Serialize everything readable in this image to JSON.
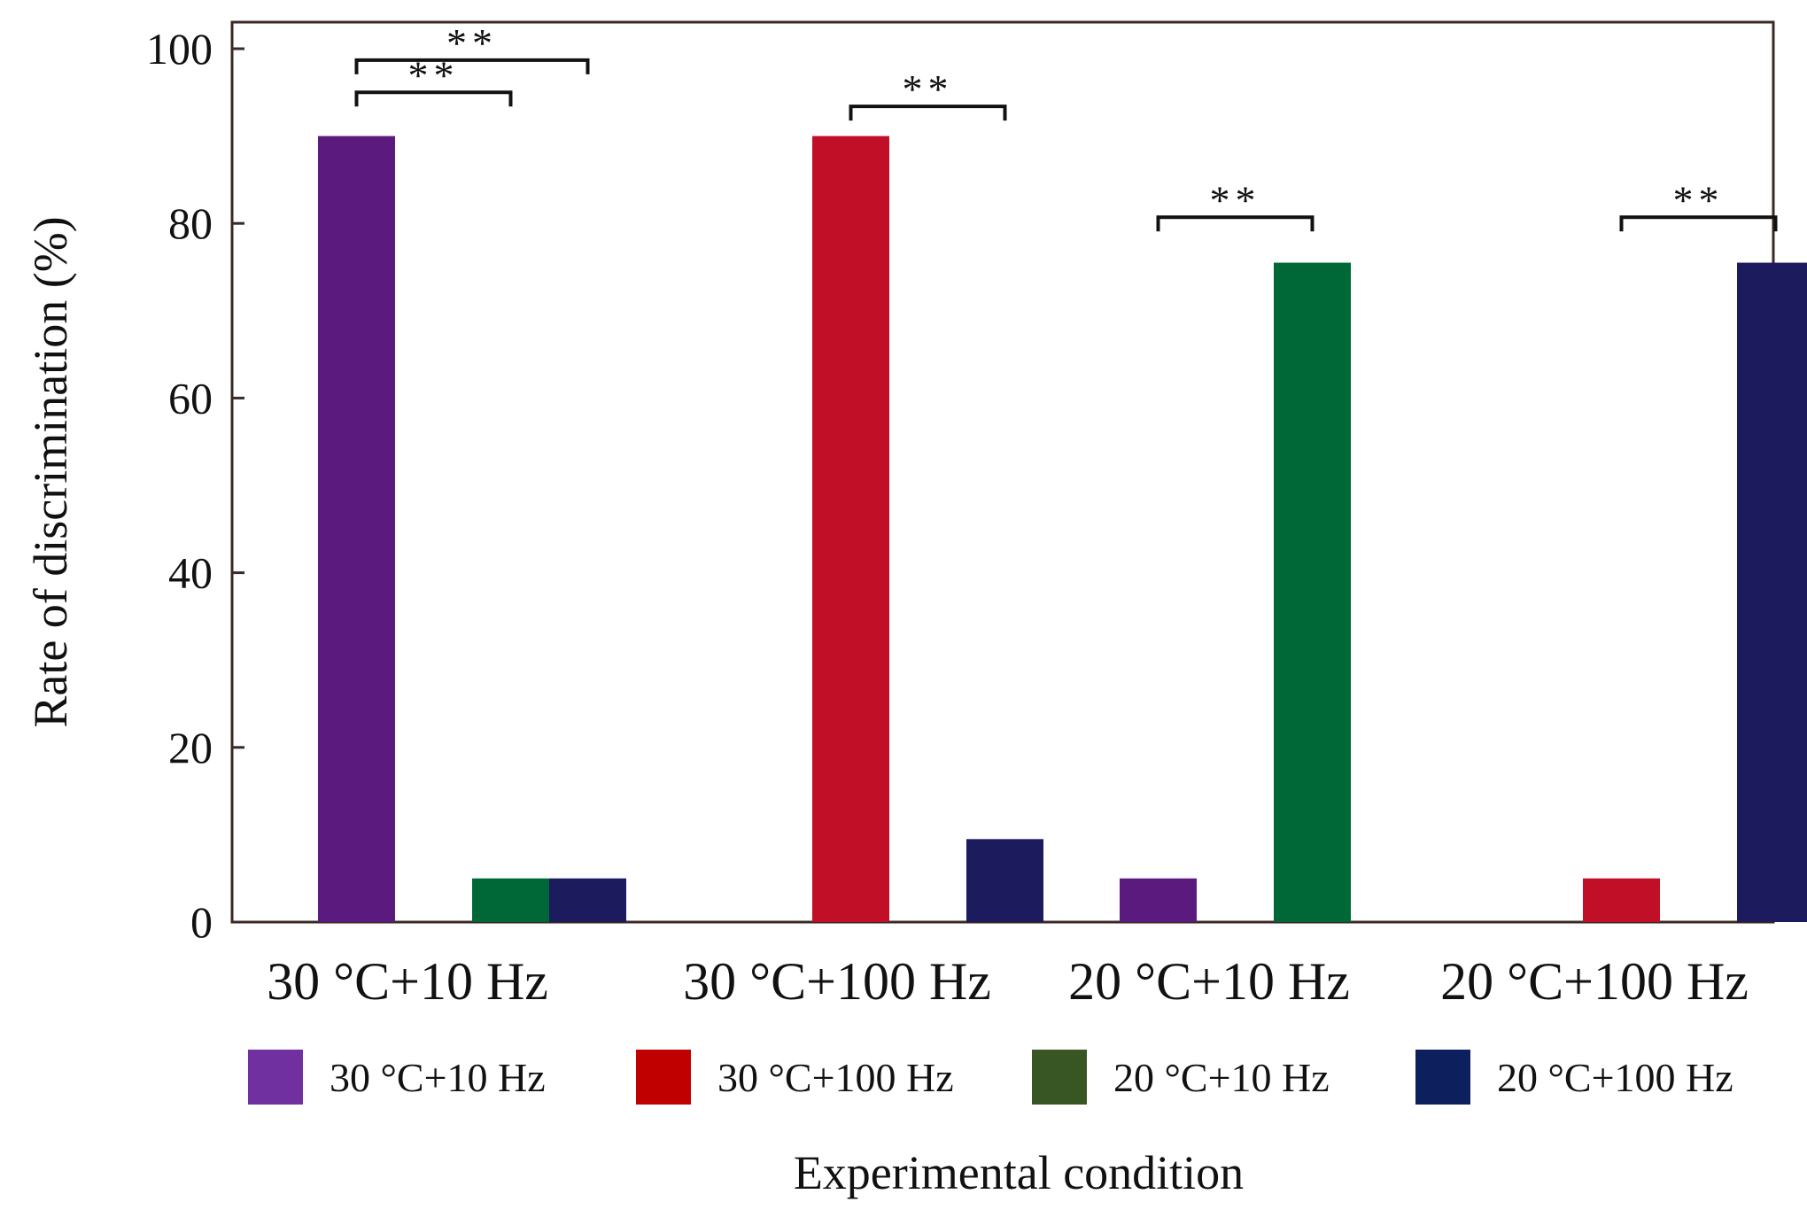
{
  "chart_data": {
    "type": "bar",
    "title": "",
    "xlabel": "Experimental condition",
    "ylabel": "Rate of discrimination (%)",
    "ylim": [
      0,
      100
    ],
    "yticks": [
      0,
      20,
      40,
      60,
      80,
      100
    ],
    "grid": false,
    "legend_position": "below-plot",
    "categories": [
      "30 °C+10 Hz",
      "30 °C+100 Hz",
      "20 °C+10 Hz",
      "20 °C+100 Hz"
    ],
    "series": [
      {
        "name": "30 °C+10 Hz",
        "color": "#5b1a7e",
        "legend_color": "#7030a0",
        "values": [
          90,
          0,
          5,
          0
        ]
      },
      {
        "name": "30 °C+100 Hz",
        "color": "#c00f26",
        "legend_color": "#c00000",
        "values": [
          0,
          90,
          0,
          5
        ]
      },
      {
        "name": "20 °C+10 Hz",
        "color": "#006837",
        "legend_color": "#375623",
        "values": [
          5,
          0,
          75.5,
          0
        ]
      },
      {
        "name": "20 °C+100 Hz",
        "color": "#1b1b5e",
        "legend_color": "#0d1f5c",
        "values": [
          5,
          9.5,
          0,
          75.5
        ]
      }
    ],
    "annotations": [
      {
        "category": 0,
        "from_series": 0,
        "to_series": 2,
        "label": "**",
        "level": 95
      },
      {
        "category": 0,
        "from_series": 0,
        "to_series": 3,
        "label": "**",
        "level": 98.7
      },
      {
        "category": 1,
        "from_series": 1,
        "to_series": 3,
        "label": "**",
        "level": 93.4
      },
      {
        "category": 2,
        "from_series": 0,
        "to_series": 2,
        "label": "**",
        "level": 80.7
      },
      {
        "category": 3,
        "from_series": 1,
        "to_series": 3,
        "label": "**",
        "level": 80.7
      }
    ]
  }
}
